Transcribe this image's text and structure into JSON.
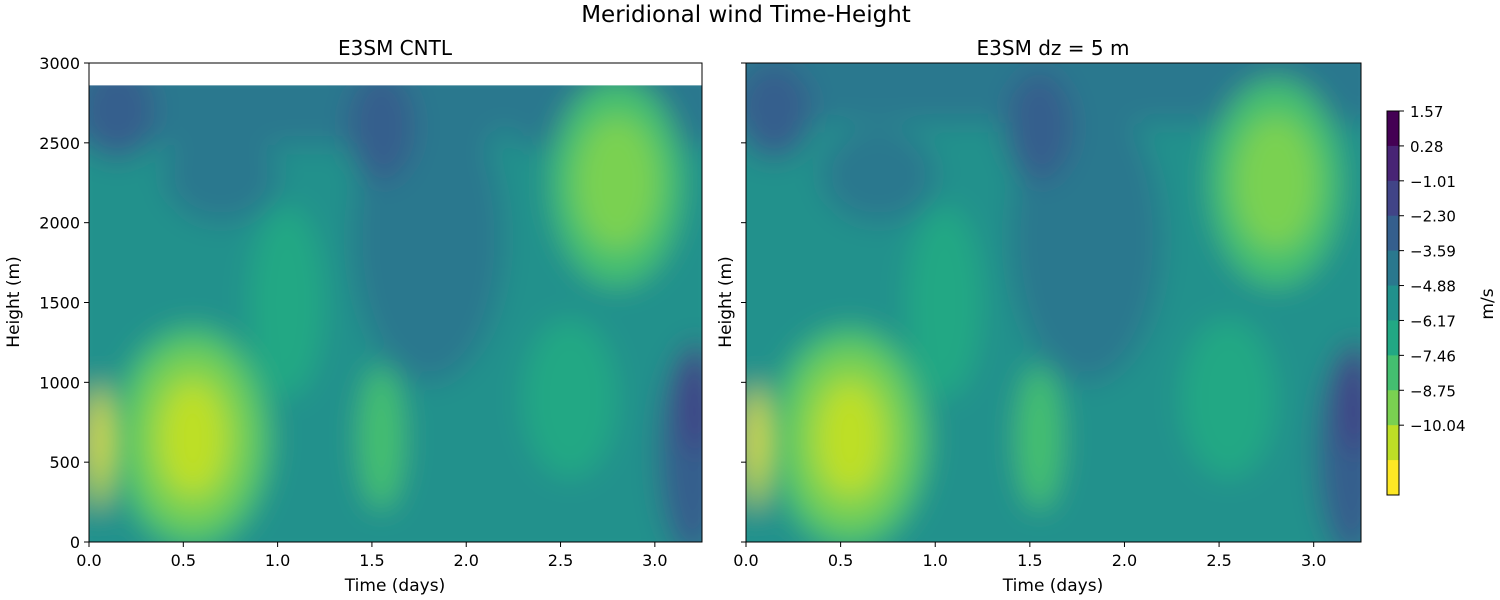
{
  "suptitle": "Meridional wind Time-Height",
  "chart_data": [
    {
      "type": "heatmap",
      "title": "E3SM CNTL",
      "xlabel": "Time (days)",
      "ylabel": "Height (m)",
      "xlim": [
        0.0,
        3.25
      ],
      "ylim": [
        0,
        3000
      ],
      "data_top": 2860,
      "xticks": [
        "0.0",
        "0.5",
        "1.0",
        "1.5",
        "2.0",
        "2.5",
        "3.0"
      ],
      "yticks": [
        "0",
        "500",
        "1000",
        "1500",
        "2000",
        "2500",
        "3000"
      ]
    },
    {
      "type": "heatmap",
      "title": "E3SM dz = 5 m",
      "xlabel": "Time (days)",
      "ylabel": "Height (m)",
      "xlim": [
        0.0,
        3.25
      ],
      "ylim": [
        0,
        3000
      ],
      "data_top": 3000,
      "xticks": [
        "0.0",
        "0.5",
        "1.0",
        "1.5",
        "2.0",
        "2.5",
        "3.0"
      ],
      "yticks": []
    }
  ],
  "colorbar": {
    "label": "m/s",
    "ticks": [
      "1.57",
      "0.28",
      "−1.01",
      "−2.30",
      "−3.59",
      "−4.88",
      "−6.17",
      "−7.46",
      "−8.75",
      "−10.04"
    ],
    "colors": [
      "#440154",
      "#482475",
      "#414487",
      "#355f8d",
      "#2a788e",
      "#21918c",
      "#22a884",
      "#44bf70",
      "#7ad151",
      "#bddf26",
      "#fde725"
    ]
  }
}
